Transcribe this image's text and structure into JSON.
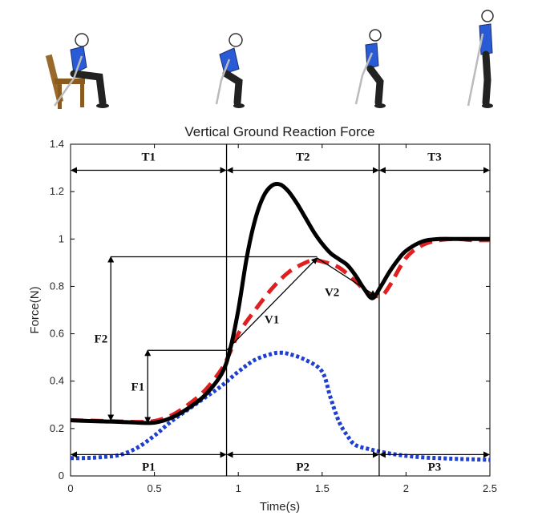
{
  "chart_data": {
    "type": "line",
    "title": "Vertical Ground Reaction Force",
    "xlabel": "Time(s)",
    "ylabel": "Force(N)",
    "xlim": [
      0,
      2.5
    ],
    "ylim": [
      0,
      1.4
    ],
    "xticks": [
      0,
      0.5,
      1,
      1.5,
      2,
      2.5
    ],
    "xtick_labels": [
      "0",
      "0.5",
      "1",
      "1.5",
      "2",
      "2.5"
    ],
    "yticks": [
      0,
      0.2,
      0.4,
      0.6,
      0.8,
      1.0,
      1.2,
      1.4
    ],
    "ytick_labels": [
      "0",
      "0.2",
      "0.4",
      "0.6",
      "0.8",
      "1",
      "1.2",
      "1.4"
    ],
    "grid": false,
    "series": [
      {
        "style": "solid",
        "color": "#000000",
        "x": [
          0,
          0.1,
          0.2,
          0.3,
          0.4,
          0.5,
          0.6,
          0.7,
          0.8,
          0.9,
          0.95,
          1.0,
          1.05,
          1.1,
          1.15,
          1.2,
          1.25,
          1.3,
          1.35,
          1.4,
          1.45,
          1.5,
          1.55,
          1.6,
          1.65,
          1.7,
          1.75,
          1.8,
          1.85,
          1.9,
          1.95,
          2.0,
          2.1,
          2.2,
          2.3,
          2.4,
          2.5
        ],
        "y": [
          0.235,
          0.232,
          0.23,
          0.228,
          0.225,
          0.225,
          0.245,
          0.285,
          0.34,
          0.43,
          0.53,
          0.7,
          0.92,
          1.08,
          1.18,
          1.225,
          1.23,
          1.2,
          1.15,
          1.09,
          1.03,
          0.98,
          0.94,
          0.915,
          0.89,
          0.845,
          0.79,
          0.75,
          0.8,
          0.86,
          0.91,
          0.95,
          0.99,
          1.0,
          1.0,
          1.0,
          1.0
        ]
      },
      {
        "style": "dashed",
        "color": "#e02020",
        "x": [
          0,
          0.2,
          0.4,
          0.5,
          0.6,
          0.7,
          0.8,
          0.9,
          0.95,
          1.0,
          1.1,
          1.2,
          1.3,
          1.4,
          1.45,
          1.5,
          1.6,
          1.7,
          1.78,
          1.85,
          1.9,
          2.0,
          2.1,
          2.2,
          2.3,
          2.4,
          2.5
        ],
        "y": [
          0.235,
          0.232,
          0.228,
          0.232,
          0.255,
          0.3,
          0.36,
          0.45,
          0.52,
          0.6,
          0.7,
          0.79,
          0.86,
          0.9,
          0.91,
          0.905,
          0.88,
          0.82,
          0.77,
          0.76,
          0.8,
          0.92,
          0.975,
          0.995,
          1.0,
          0.995,
          0.995
        ]
      },
      {
        "style": "dotted",
        "color": "#1f3fd0",
        "x": [
          0,
          0.1,
          0.2,
          0.3,
          0.4,
          0.5,
          0.6,
          0.7,
          0.8,
          0.9,
          1.0,
          1.1,
          1.2,
          1.25,
          1.3,
          1.4,
          1.5,
          1.55,
          1.6,
          1.65,
          1.7,
          1.8,
          1.9,
          2.0,
          2.1,
          2.2,
          2.3,
          2.4,
          2.5
        ],
        "y": [
          0.075,
          0.076,
          0.08,
          0.09,
          0.12,
          0.17,
          0.23,
          0.28,
          0.33,
          0.38,
          0.44,
          0.49,
          0.515,
          0.52,
          0.515,
          0.49,
          0.44,
          0.33,
          0.23,
          0.17,
          0.13,
          0.11,
          0.095,
          0.085,
          0.078,
          0.075,
          0.072,
          0.07,
          0.068
        ]
      }
    ],
    "phase_lines": [
      {
        "x": 0.93,
        "y_range": [
          0,
          1.4
        ]
      },
      {
        "x": 1.84,
        "y_range": [
          0,
          1.4
        ]
      }
    ],
    "phase_labels_top": [
      {
        "label": "T1",
        "x_range": [
          0,
          0.93
        ],
        "y": 1.29
      },
      {
        "label": "T2",
        "x_range": [
          0.93,
          1.84
        ],
        "y": 1.29
      },
      {
        "label": "T3",
        "x_range": [
          1.84,
          2.5
        ],
        "y": 1.29
      }
    ],
    "phase_labels_bottom": [
      {
        "label": "P1",
        "x_range": [
          0,
          0.93
        ],
        "y": 0.09
      },
      {
        "label": "P2",
        "x_range": [
          0.93,
          1.84
        ],
        "y": 0.09
      },
      {
        "label": "P3",
        "x_range": [
          1.84,
          2.5
        ],
        "y": 0.09
      }
    ],
    "annotations": [
      {
        "label": "F1",
        "x": 0.46,
        "y_from": 0.225,
        "y_to": 0.53,
        "ref_x_end": 0.93
      },
      {
        "label": "F2",
        "x": 0.24,
        "y_from": 0.235,
        "y_to": 0.925,
        "ref_x_end": 1.47
      },
      {
        "label": "V1",
        "from": [
          0.93,
          0.53
        ],
        "to": [
          1.47,
          0.92
        ]
      },
      {
        "label": "V2",
        "from": [
          1.47,
          0.92
        ],
        "to": [
          1.82,
          0.76
        ]
      }
    ]
  },
  "figures": [
    "person-sitting-on-chair",
    "person-leaning-forward",
    "person-rising",
    "person-standing"
  ]
}
